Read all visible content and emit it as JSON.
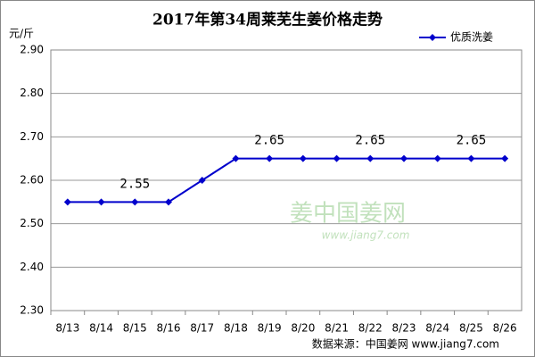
{
  "chart_data": {
    "type": "line",
    "title": "2017年第34周莱芜生姜价格走势",
    "y_unit": "元/斤",
    "categories": [
      "8/13",
      "8/14",
      "8/15",
      "8/16",
      "8/17",
      "8/18",
      "8/19",
      "8/20",
      "8/21",
      "8/22",
      "8/23",
      "8/24",
      "8/25",
      "8/26"
    ],
    "series": [
      {
        "name": "优质洗姜",
        "color": "#0000cc",
        "values": [
          2.55,
          2.55,
          2.55,
          2.55,
          2.6,
          2.65,
          2.65,
          2.65,
          2.65,
          2.65,
          2.65,
          2.65,
          2.65,
          2.65
        ],
        "value_labels": [
          null,
          null,
          "2.55",
          null,
          null,
          null,
          "2.65",
          null,
          null,
          "2.65",
          null,
          null,
          "2.65",
          null
        ]
      }
    ],
    "ylim": [
      2.3,
      2.9
    ],
    "yticks": [
      {
        "value": 2.3,
        "label": "2.30"
      },
      {
        "value": 2.4,
        "label": "2.40"
      },
      {
        "value": 2.5,
        "label": "2.50"
      },
      {
        "value": 2.6,
        "label": "2.60"
      },
      {
        "value": 2.7,
        "label": "2.70"
      },
      {
        "value": 2.8,
        "label": "2.80"
      },
      {
        "value": 2.9,
        "label": "2.90"
      }
    ],
    "grid": true,
    "legend": "top-right",
    "watermark": [
      "姜中国姜网",
      "www.jiang7.com"
    ],
    "source": "数据来源：中国姜网 www.jiang7.com"
  }
}
